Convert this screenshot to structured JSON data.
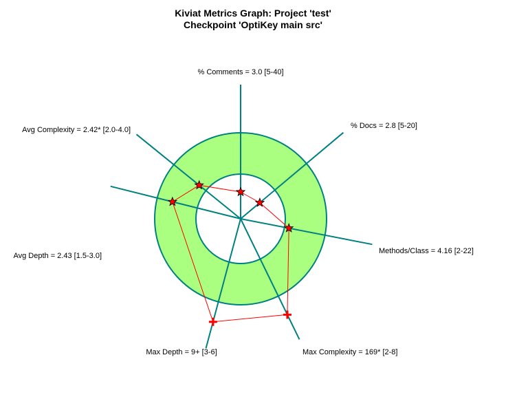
{
  "chart_data": {
    "type": "radar",
    "title": "Kiviat Metrics Graph: Project 'test'",
    "subtitle": "Checkpoint 'OptiKey main src'",
    "axes": [
      {
        "key": "comments",
        "label": "% Comments = 3.0 [5-40]",
        "value": 3.0,
        "range": [
          5,
          40
        ],
        "over_limit": false
      },
      {
        "key": "docs",
        "label": "% Docs = 2.8 [5-20]",
        "value": 2.8,
        "range": [
          5,
          20
        ],
        "over_limit": false
      },
      {
        "key": "methods",
        "label": "Methods/Class = 4.16 [2-22]",
        "value": 4.16,
        "range": [
          2,
          22
        ],
        "over_limit": false
      },
      {
        "key": "maxcomp",
        "label": "Max Complexity = 169* [2-8]",
        "value": 169,
        "range": [
          2,
          8
        ],
        "over_limit": true
      },
      {
        "key": "maxdepth",
        "label": "Max Depth = 9+ [3-6]",
        "value": 9,
        "range": [
          3,
          6
        ],
        "over_limit": true
      },
      {
        "key": "avgdepth",
        "label": "Avg Depth = 2.43 [1.5-3.0]",
        "value": 2.43,
        "range": [
          1.5,
          3.0
        ],
        "over_limit": false
      },
      {
        "key": "avgcomp",
        "label": "Avg Complexity = 2.42* [2.0-4.0]",
        "value": 2.42,
        "range": [
          2.0,
          4.0
        ],
        "over_limit": false
      }
    ],
    "colors": {
      "band_fill": "#aaff80",
      "axis": "#008080",
      "series": "#ff0000",
      "marker": "#ff0000",
      "marker_outline": "#000000"
    }
  }
}
